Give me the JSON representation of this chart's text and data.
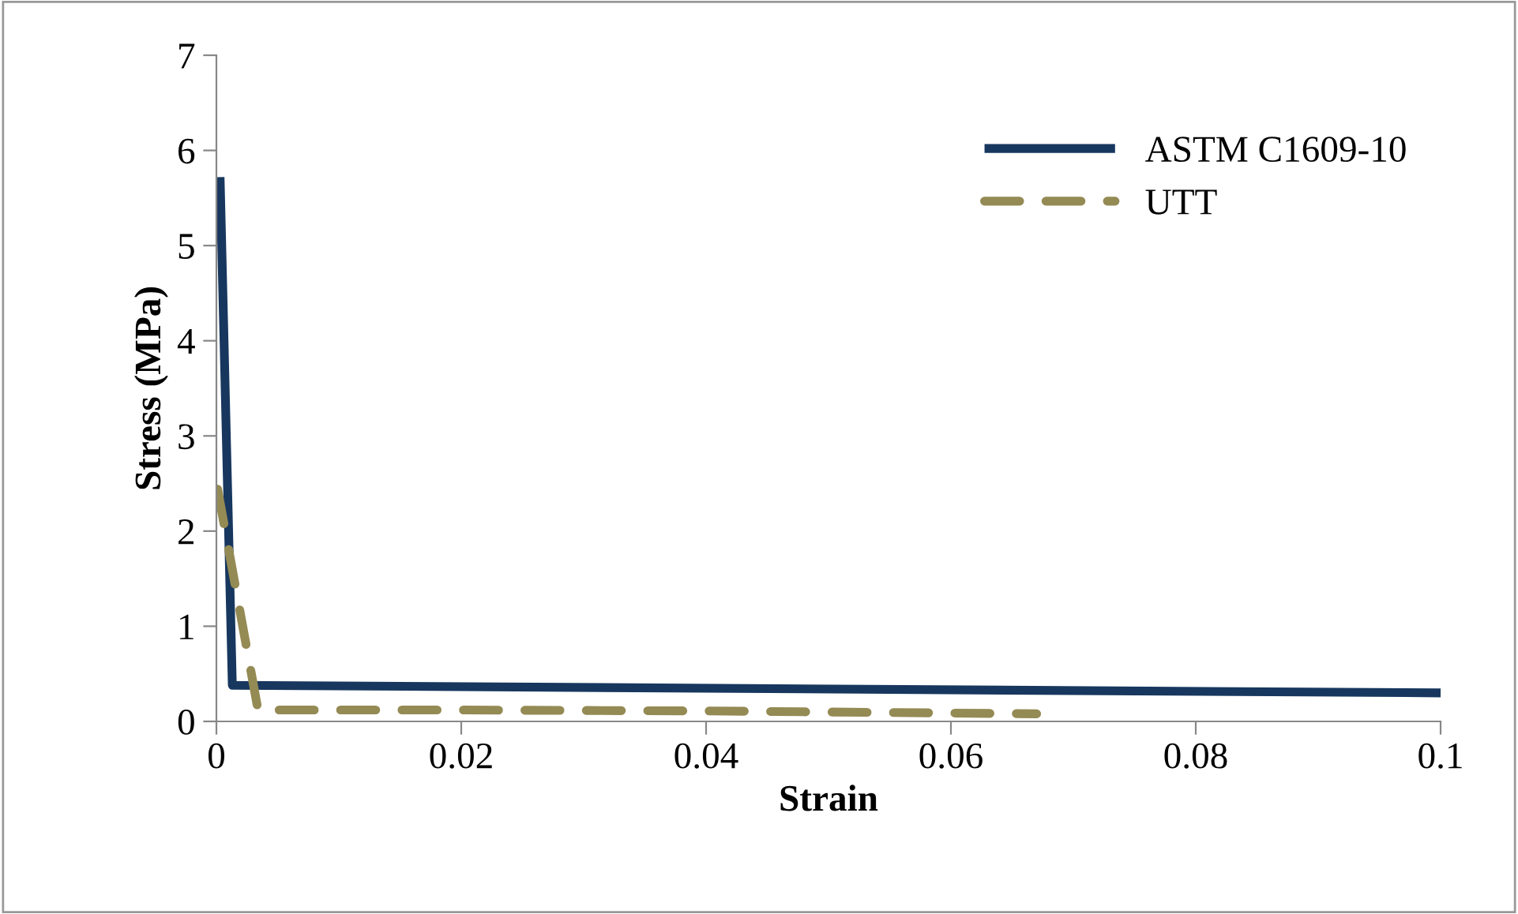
{
  "chart_data": {
    "type": "line",
    "xlabel": "Strain",
    "ylabel": "Stress (MPa)",
    "xlim": [
      0,
      0.1
    ],
    "ylim": [
      0,
      7
    ],
    "xticks": [
      0,
      0.02,
      0.04,
      0.06,
      0.08,
      0.1
    ],
    "yticks": [
      0,
      1,
      2,
      3,
      4,
      5,
      6,
      7
    ],
    "grid": false,
    "legend": "top right",
    "marker": "none",
    "series": [
      {
        "name": "ASTM C1609-10",
        "color": "#17375e",
        "line_style": "solid",
        "x": [
          0.0003,
          0.0013,
          0.1
        ],
        "values": [
          5.72,
          0.38,
          0.3
        ]
      },
      {
        "name": "UTT",
        "color": "#948a54",
        "line_style": "dashed",
        "x": [
          0.0001,
          0.0034,
          0.02,
          0.04,
          0.067
        ],
        "values": [
          2.44,
          0.12,
          0.12,
          0.11,
          0.08
        ]
      }
    ]
  }
}
